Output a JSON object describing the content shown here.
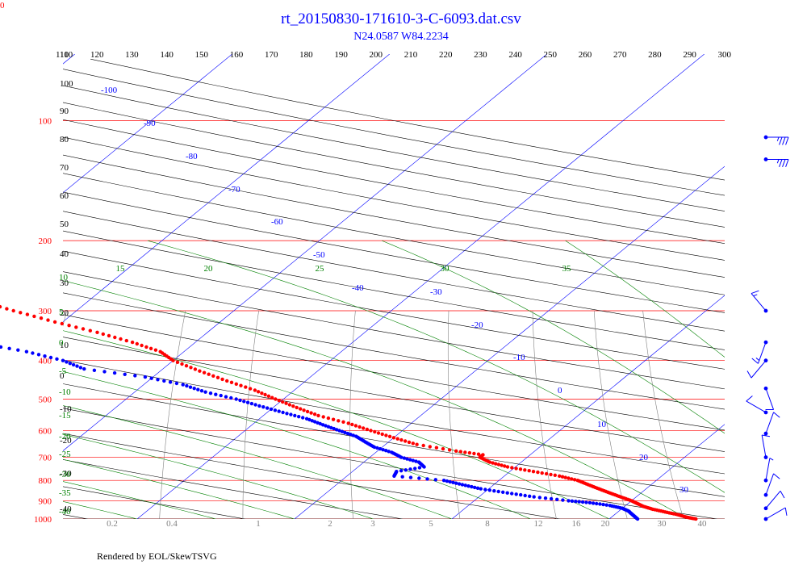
{
  "corner_marker": "0",
  "chart_data": {
    "type": "scatter",
    "title": "rt_20150830-171610-3-C-6093.dat.csv",
    "subtitle": "N24.0587 W84.2234",
    "footer": "Rendered by EOL/SkewTSVG",
    "pressure_ticks": [
      "100",
      "200",
      "300",
      "400",
      "500",
      "600",
      "700",
      "800",
      "900",
      "1000"
    ],
    "potential_temperature_ticks": [
      "110",
      "120",
      "130",
      "140",
      "150",
      "160",
      "170",
      "180",
      "190",
      "200",
      "210",
      "220",
      "230",
      "240",
      "250",
      "260",
      "270",
      "280",
      "290",
      "300"
    ],
    "left_dry_adiabat_ticks": [
      "110",
      "100",
      "90",
      "80",
      "70",
      "60",
      "50",
      "40",
      "30",
      "20",
      "10",
      "0",
      "-10",
      "-20",
      "-30",
      "-40"
    ],
    "isotherm_labels": [
      "-100",
      "-90",
      "-80",
      "-70",
      "-60",
      "-50",
      "-40",
      "-30",
      "-20",
      "-10",
      "0",
      "10",
      "20",
      "30"
    ],
    "moist_adiabat_top_labels": [
      "15",
      "20",
      "25",
      "30",
      "35"
    ],
    "moist_adiabat_left_labels": [
      "10",
      "5",
      "0",
      "-5",
      "-10",
      "-15",
      "-20",
      "-25",
      "-30",
      "-35",
      "-40"
    ],
    "mixing_ratio_labels": [
      "0.2",
      "0.4",
      "1",
      "2",
      "3",
      "5",
      "8",
      "12",
      "16",
      "20",
      "30",
      "40"
    ],
    "colors": {
      "temperature": "#ff0000",
      "dewpoint": "#0000ff",
      "isobar": "#ff0000",
      "isotherm": "#0000ff",
      "dry_adiabat": "#000000",
      "moist_adiabat": "#008000",
      "mixing_ratio": "#808080",
      "title": "#0000ff"
    },
    "temperature_profile": [
      {
        "p": 1000,
        "t": 25.5
      },
      {
        "p": 990,
        "t": 24.8
      },
      {
        "p": 975,
        "t": 24.0
      },
      {
        "p": 960,
        "t": 23.0
      },
      {
        "p": 945,
        "t": 22.0
      },
      {
        "p": 930,
        "t": 21.2
      },
      {
        "p": 915,
        "t": 20.6
      },
      {
        "p": 900,
        "t": 20.0
      },
      {
        "p": 880,
        "t": 19.0
      },
      {
        "p": 860,
        "t": 18.0
      },
      {
        "p": 840,
        "t": 17.0
      },
      {
        "p": 820,
        "t": 16.0
      },
      {
        "p": 800,
        "t": 15.0
      },
      {
        "p": 780,
        "t": 13.5
      },
      {
        "p": 760,
        "t": 11.5
      },
      {
        "p": 740,
        "t": 9.5
      },
      {
        "p": 720,
        "t": 8.0
      },
      {
        "p": 700,
        "t": 7.0
      },
      {
        "p": 690,
        "t": 7.0
      },
      {
        "p": 675,
        "t": 5.0
      },
      {
        "p": 650,
        "t": 2.0
      },
      {
        "p": 625,
        "t": 0.0
      },
      {
        "p": 600,
        "t": -2.0
      },
      {
        "p": 575,
        "t": -4.0
      },
      {
        "p": 550,
        "t": -6.5
      },
      {
        "p": 525,
        "t": -8.5
      },
      {
        "p": 500,
        "t": -10.5
      },
      {
        "p": 475,
        "t": -12.5
      },
      {
        "p": 450,
        "t": -15.0
      },
      {
        "p": 425,
        "t": -17.5
      },
      {
        "p": 400,
        "t": -20.0
      },
      {
        "p": 380,
        "t": -21.5
      },
      {
        "p": 360,
        "t": -24.0
      },
      {
        "p": 340,
        "t": -27.0
      },
      {
        "p": 320,
        "t": -30.5
      },
      {
        "p": 300,
        "t": -34.0
      },
      {
        "p": 280,
        "t": -37.5
      },
      {
        "p": 260,
        "t": -41.5
      },
      {
        "p": 240,
        "t": -45.0
      },
      {
        "p": 220,
        "t": -49.0
      },
      {
        "p": 200,
        "t": -53.0
      },
      {
        "p": 180,
        "t": -57.5
      },
      {
        "p": 160,
        "t": -62.0
      },
      {
        "p": 150,
        "t": -64.5
      },
      {
        "p": 140,
        "t": -67.5
      },
      {
        "p": 130,
        "t": -70.5
      },
      {
        "p": 125,
        "t": -72.0
      },
      {
        "p": 122,
        "t": -71.0
      },
      {
        "p": 118,
        "t": -69.0
      },
      {
        "p": 112,
        "t": -70.5
      },
      {
        "p": 106,
        "t": -72.5
      },
      {
        "p": 100,
        "t": -74.0
      },
      {
        "p": 95,
        "t": -74.5
      },
      {
        "p": 90,
        "t": -75.0
      },
      {
        "p": 86,
        "t": -74.0
      },
      {
        "p": 82,
        "t": -72.0
      }
    ],
    "dewpoint_profile": [
      {
        "p": 1000,
        "t": 21.8
      },
      {
        "p": 985,
        "t": 21.4
      },
      {
        "p": 970,
        "t": 21.0
      },
      {
        "p": 955,
        "t": 20.6
      },
      {
        "p": 940,
        "t": 20.0
      },
      {
        "p": 925,
        "t": 19.0
      },
      {
        "p": 910,
        "t": 17.5
      },
      {
        "p": 900,
        "t": 16.0
      },
      {
        "p": 880,
        "t": 13.5
      },
      {
        "p": 860,
        "t": 11.5
      },
      {
        "p": 840,
        "t": 9.5
      },
      {
        "p": 820,
        "t": 8.0
      },
      {
        "p": 800,
        "t": 6.5
      },
      {
        "p": 780,
        "t": 3.0
      },
      {
        "p": 760,
        "t": 2.8
      },
      {
        "p": 740,
        "t": 4.2
      },
      {
        "p": 720,
        "t": 3.5
      },
      {
        "p": 700,
        "t": 2.0
      },
      {
        "p": 680,
        "t": 1.0
      },
      {
        "p": 660,
        "t": -0.5
      },
      {
        "p": 640,
        "t": -1.5
      },
      {
        "p": 620,
        "t": -2.5
      },
      {
        "p": 600,
        "t": -4.0
      },
      {
        "p": 580,
        "t": -5.5
      },
      {
        "p": 560,
        "t": -7.0
      },
      {
        "p": 540,
        "t": -9.0
      },
      {
        "p": 520,
        "t": -11.0
      },
      {
        "p": 500,
        "t": -13.0
      },
      {
        "p": 480,
        "t": -15.5
      },
      {
        "p": 460,
        "t": -17.5
      },
      {
        "p": 440,
        "t": -20.5
      },
      {
        "p": 420,
        "t": -25.0
      },
      {
        "p": 400,
        "t": -27.0
      },
      {
        "p": 380,
        "t": -30.0
      },
      {
        "p": 360,
        "t": -34.0
      },
      {
        "p": 340,
        "t": -38.0
      },
      {
        "p": 320,
        "t": -42.0
      },
      {
        "p": 300,
        "t": -46.0
      },
      {
        "p": 290,
        "t": -49.5
      },
      {
        "p": 280,
        "t": -54.0
      },
      {
        "p": 270,
        "t": -59.0
      },
      {
        "p": 260,
        "t": -64.0
      },
      {
        "p": 250,
        "t": -69.0
      },
      {
        "p": 240,
        "t": -74.0
      },
      {
        "p": 230,
        "t": -79.0
      },
      {
        "p": 220,
        "t": -84.0
      },
      {
        "p": 210,
        "t": -89.0
      },
      {
        "p": 205,
        "t": -92.0
      }
    ],
    "wind_barbs": [
      {
        "p": 110,
        "dir": 90,
        "speed": 35
      },
      {
        "p": 125,
        "dir": 90,
        "speed": 35
      },
      {
        "p": 300,
        "dir": 320,
        "speed": 15
      },
      {
        "p": 360,
        "dir": 200,
        "speed": 15
      },
      {
        "p": 400,
        "dir": 220,
        "speed": 10
      },
      {
        "p": 470,
        "dir": 160,
        "speed": 10
      },
      {
        "p": 540,
        "dir": 300,
        "speed": 10
      },
      {
        "p": 610,
        "dir": 20,
        "speed": 10
      },
      {
        "p": 700,
        "dir": 350,
        "speed": 10
      },
      {
        "p": 800,
        "dir": 10,
        "speed": 5
      },
      {
        "p": 870,
        "dir": 20,
        "speed": 10
      },
      {
        "p": 940,
        "dir": 40,
        "speed": 10
      },
      {
        "p": 1000,
        "dir": 60,
        "speed": 10
      }
    ]
  }
}
